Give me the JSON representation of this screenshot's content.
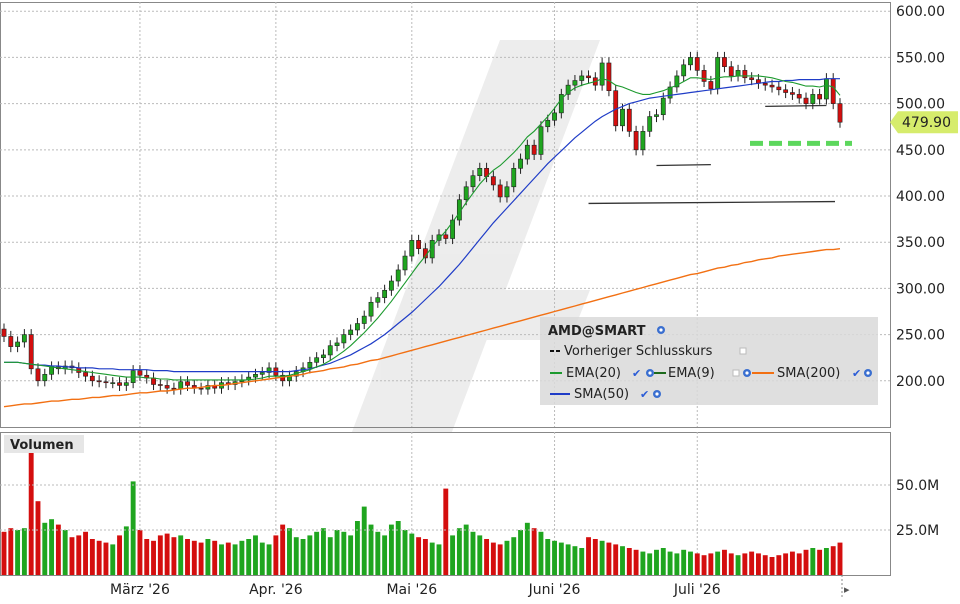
{
  "chart_data": {
    "type": "candlestick",
    "symbol": "AMD@SMART",
    "price_ylim": [
      150,
      610
    ],
    "price_ticks": [
      "600.00",
      "550.00",
      "500.00",
      "450.00",
      "400.00",
      "350.00",
      "300.00",
      "250.00",
      "200.00"
    ],
    "last_price_label": "479.90",
    "last_price": 479.9,
    "x_ticks": [
      {
        "label": "März '26",
        "index": 20
      },
      {
        "label": "Apr. '26",
        "index": 40
      },
      {
        "label": "Mai '26",
        "index": 60
      },
      {
        "label": "Juni '26",
        "index": 81
      },
      {
        "label": "Juli '26",
        "index": 102
      }
    ],
    "legend": {
      "title": "AMD@SMART",
      "prev_close": "Vorheriger Schlusskurs",
      "ema20": "EMA(20)",
      "ema9": "EMA(9)",
      "sma200": "SMA(200)",
      "sma50": "SMA(50)"
    },
    "volume_panel_title": "Volumen",
    "volume_ticks": [
      "50.0M",
      "25.0M"
    ],
    "volume_ylim": [
      0,
      75
    ],
    "closes": [
      248,
      237,
      242,
      250,
      213,
      200,
      207,
      215,
      213,
      216,
      214,
      209,
      205,
      200,
      199,
      198,
      198,
      195,
      198,
      211,
      206,
      203,
      196,
      195,
      192,
      191,
      199,
      195,
      192,
      191,
      195,
      192,
      198,
      196,
      199,
      201,
      204,
      207,
      209,
      214,
      206,
      200,
      205,
      210,
      214,
      220,
      225,
      228,
      238,
      241,
      250,
      255,
      262,
      270,
      285,
      290,
      298,
      308,
      320,
      335,
      352,
      343,
      333,
      352,
      358,
      354,
      374,
      396,
      410,
      422,
      430,
      421,
      412,
      399,
      410,
      430,
      440,
      455,
      445,
      475,
      482,
      490,
      510,
      520,
      525,
      530,
      528,
      520,
      544,
      514,
      476,
      494,
      470,
      450,
      470,
      486,
      488,
      506,
      518,
      530,
      542,
      550,
      536,
      524,
      516,
      550,
      540,
      530,
      536,
      528,
      526,
      522,
      520,
      518,
      515,
      512,
      510,
      506,
      500,
      510,
      505,
      527,
      500,
      479.9
    ],
    "ema20": [
      220,
      220,
      220,
      219,
      218,
      217,
      216,
      215,
      214,
      213,
      212,
      211,
      210,
      209,
      208,
      207,
      206,
      205,
      204,
      204,
      204,
      203,
      203,
      202,
      202,
      201,
      201,
      201,
      201,
      201,
      201,
      201,
      201,
      201,
      201,
      201,
      201,
      202,
      203,
      205,
      205,
      205,
      206,
      208,
      210,
      212,
      215,
      218,
      222,
      227,
      232,
      238,
      245,
      252,
      260,
      268,
      277,
      286,
      296,
      306,
      316,
      326,
      335,
      345,
      354,
      362,
      372,
      382,
      393,
      403,
      413,
      421,
      428,
      433,
      440,
      447,
      455,
      464,
      470,
      478,
      486,
      495,
      505,
      512,
      517,
      520,
      522,
      524,
      527,
      525,
      520,
      518,
      515,
      512,
      510,
      510,
      512,
      514,
      517,
      520,
      524,
      528,
      528,
      527,
      526,
      528,
      529,
      529,
      530,
      530,
      530,
      530,
      529,
      528,
      526,
      524,
      523,
      521,
      519,
      519,
      518,
      520,
      518,
      509
    ],
    "sma50": [
      220,
      220,
      220,
      219,
      218,
      217,
      217,
      216,
      216,
      215,
      215,
      214,
      214,
      214,
      213,
      213,
      213,
      212,
      212,
      212,
      212,
      212,
      211,
      211,
      211,
      210,
      210,
      210,
      210,
      210,
      210,
      210,
      210,
      210,
      210,
      210,
      210,
      210,
      210,
      210,
      210,
      210,
      210,
      211,
      212,
      213,
      215,
      217,
      219,
      222,
      225,
      228,
      232,
      236,
      240,
      245,
      250,
      256,
      262,
      268,
      274,
      281,
      288,
      295,
      302,
      310,
      318,
      326,
      335,
      344,
      353,
      362,
      371,
      379,
      387,
      395,
      403,
      411,
      419,
      427,
      435,
      442,
      449,
      456,
      463,
      469,
      475,
      481,
      486,
      490,
      494,
      497,
      500,
      502,
      504,
      506,
      507,
      508,
      509,
      510,
      511,
      512,
      513,
      514,
      515,
      516,
      517,
      518,
      519,
      520,
      521,
      522,
      523,
      524,
      524,
      525,
      525,
      526,
      526,
      526,
      526,
      527,
      527,
      527
    ],
    "sma200": [
      172,
      173,
      174,
      175,
      175,
      176,
      177,
      178,
      178,
      179,
      180,
      180,
      181,
      182,
      182,
      183,
      184,
      184,
      185,
      186,
      187,
      187,
      188,
      189,
      189,
      190,
      191,
      192,
      192,
      193,
      194,
      195,
      195,
      196,
      197,
      198,
      199,
      200,
      201,
      202,
      203,
      204,
      205,
      206,
      207,
      209,
      210,
      211,
      213,
      214,
      215,
      217,
      218,
      220,
      222,
      223,
      225,
      227,
      229,
      231,
      233,
      235,
      237,
      239,
      241,
      243,
      245,
      247,
      249,
      251,
      253,
      255,
      257,
      259,
      261,
      263,
      265,
      267,
      269,
      271,
      273,
      275,
      277,
      279,
      281,
      283,
      285,
      287,
      289,
      291,
      293,
      295,
      297,
      299,
      301,
      303,
      305,
      307,
      309,
      311,
      313,
      315,
      316,
      318,
      320,
      322,
      323,
      325,
      326,
      328,
      329,
      331,
      332,
      333,
      335,
      336,
      337,
      338,
      339,
      340,
      341,
      342,
      342,
      343
    ],
    "volumes": [
      24,
      26,
      25,
      26,
      70,
      41,
      29,
      31,
      28,
      25,
      21,
      22,
      24,
      20,
      19,
      18,
      17,
      22,
      27,
      52,
      25,
      20,
      19,
      22,
      23,
      21,
      22,
      20,
      19,
      18,
      20,
      19,
      17,
      18,
      17,
      19,
      20,
      22,
      18,
      17,
      22,
      28,
      26,
      21,
      20,
      22,
      24,
      26,
      21,
      25,
      24,
      22,
      30,
      38,
      28,
      24,
      22,
      28,
      30,
      25,
      23,
      21,
      20,
      18,
      17,
      48,
      22,
      26,
      28,
      24,
      22,
      20,
      18,
      17,
      19,
      21,
      25,
      29,
      26,
      24,
      20,
      19,
      18,
      17,
      16,
      15,
      21,
      20,
      19,
      18,
      17,
      16,
      15,
      14,
      13,
      12,
      14,
      15,
      13,
      12,
      14,
      13,
      12,
      11,
      12,
      13,
      14,
      12,
      11,
      12,
      13,
      12,
      11,
      10,
      11,
      12,
      13,
      12,
      14,
      15,
      14,
      15,
      16,
      18
    ]
  }
}
